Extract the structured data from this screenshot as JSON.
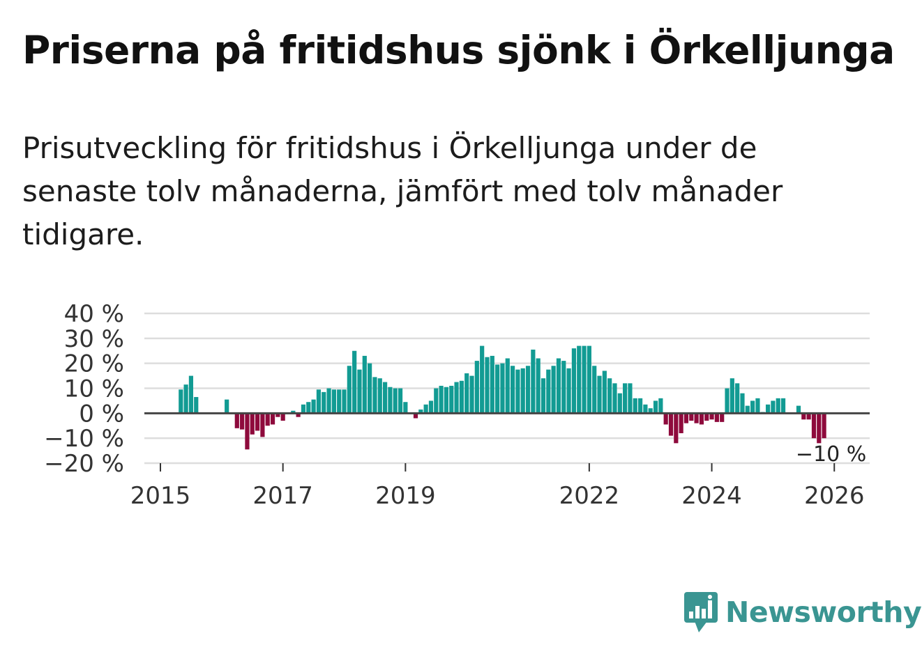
{
  "header": {
    "title": "Priserna på fritidshus sjönk i Örkelljunga",
    "subtitle": "Prisutveckling för fritidshus i Örkelljunga under de senaste tolv månaderna, jämfört med tolv månader tidigare."
  },
  "brand": {
    "name": "Newsworthy",
    "icon": "newsworthy-logo-icon",
    "color": "#3a9592"
  },
  "chart_data": {
    "type": "bar",
    "title": "",
    "xlabel": "",
    "ylabel": "",
    "ylim": [
      -20,
      40
    ],
    "yticks": [
      40,
      30,
      20,
      10,
      0,
      -10,
      -20
    ],
    "ytick_labels": [
      "40 %",
      "30 %",
      "20 %",
      "10 %",
      "0 %",
      "−10 %",
      "−20 %"
    ],
    "xticks": [
      2015,
      2017,
      2019,
      2022,
      2024,
      2026
    ],
    "xtick_labels": [
      "2015",
      "2017",
      "2019",
      "2022",
      "2024",
      "2026"
    ],
    "grid": true,
    "positive_color": "#129b93",
    "negative_color": "#8e0a3c",
    "start": "2015-01",
    "end": "2026-01",
    "annotation": {
      "label": "−10 %",
      "month": "2026-01"
    },
    "values": [
      null,
      null,
      null,
      null,
      9.5,
      11.5,
      15,
      6.5,
      null,
      null,
      null,
      null,
      null,
      5.5,
      null,
      -6,
      -6.5,
      -14.5,
      -8.5,
      -7,
      -9.5,
      -5,
      -4.5,
      -1.5,
      -3,
      null,
      1,
      -1.5,
      3.5,
      4.5,
      5.5,
      9.5,
      8.5,
      10,
      9.5,
      9.5,
      9.5,
      19,
      25,
      17.5,
      23,
      20,
      14.5,
      14,
      12.5,
      10.5,
      10,
      10,
      4.5,
      null,
      -2,
      1.5,
      3.5,
      5,
      10,
      11,
      10.5,
      11,
      12.5,
      13,
      16,
      15,
      21,
      27,
      22.5,
      23,
      19.5,
      20,
      22,
      19,
      17.5,
      18,
      19,
      25.5,
      22,
      14,
      17.5,
      19,
      22,
      21,
      18,
      26,
      27,
      27,
      27,
      19,
      15,
      17,
      14,
      12,
      8,
      12,
      12,
      6,
      6,
      3.5,
      2,
      5,
      6,
      -4.5,
      -9,
      -12,
      -8,
      -4,
      -3,
      -4,
      -4.5,
      -3,
      -2.5,
      -3.5,
      -3.5,
      10,
      14,
      12,
      8,
      3,
      5,
      6,
      0.5,
      3.5,
      5,
      6,
      6,
      null,
      null,
      3,
      -2.5,
      -2.5,
      -10,
      -12,
      -10,
      null
    ]
  }
}
